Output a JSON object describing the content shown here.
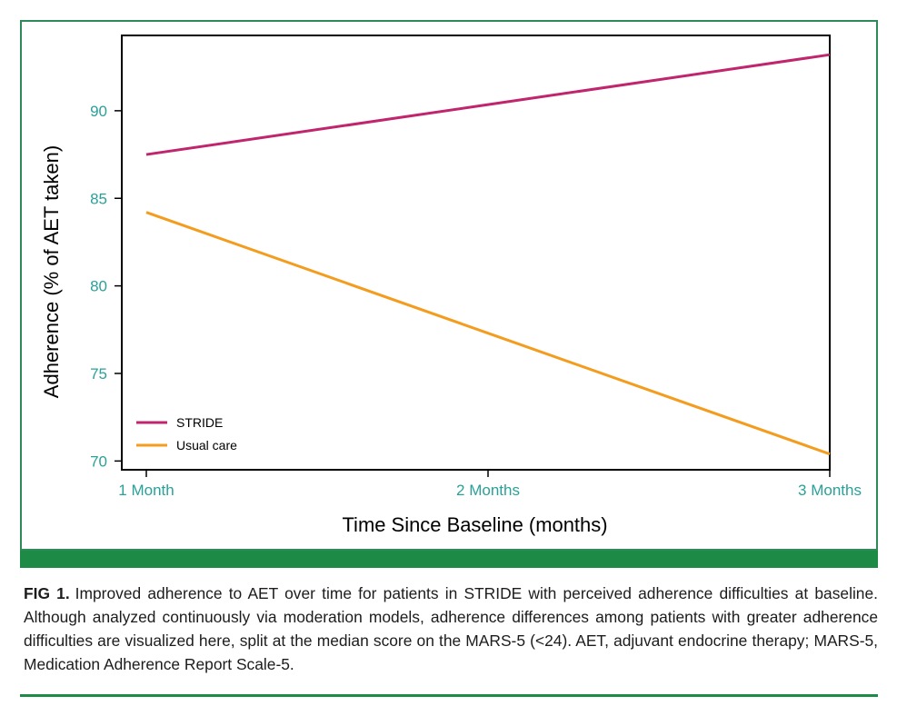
{
  "caption": {
    "label": "FIG 1.",
    "text": "Improved adherence to AET over time for patients in STRIDE with perceived adherence difficulties at baseline. Although analyzed continuously via moderation models, adherence differences among patients with greater adherence difficulties are visualized here, split at the median score on the MARS-5 (<24). AET, adjuvant endocrine therapy; MARS-5, Medication Adherence Report Scale-5."
  },
  "colors": {
    "frame": "#2e8b57",
    "band": "#1d8a45",
    "tick_text": "#2aa198",
    "axis": "#000000"
  },
  "chart_data": {
    "type": "line",
    "title": "",
    "xlabel": "Time Since Baseline (months)",
    "ylabel": "Adherence (% of AET taken)",
    "categories": [
      "1 Month",
      "2 Months",
      "3 Months"
    ],
    "x": [
      1,
      2,
      3
    ],
    "ylim": [
      69.5,
      94.3
    ],
    "yticks": [
      70,
      75,
      80,
      85,
      90
    ],
    "grid": false,
    "legend_position": "bottom-left",
    "series": [
      {
        "name": "STRIDE",
        "color": "#c0256e",
        "values": [
          87.5,
          90.35,
          93.2
        ]
      },
      {
        "name": "Usual care",
        "color": "#f39c1e",
        "values": [
          84.2,
          77.3,
          70.4
        ]
      }
    ]
  }
}
